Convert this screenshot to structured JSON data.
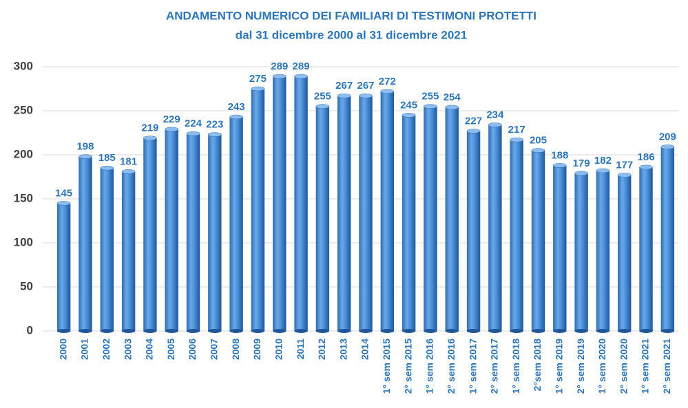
{
  "chart_data": {
    "type": "bar",
    "title": "ANDAMENTO NUMERICO DEI FAMILIARI DI TESTIMONI PROTETTI",
    "subtitle": "dal 31 dicembre 2000 al 31 dicembre 2021",
    "categories": [
      "2000",
      "2001",
      "2002",
      "2003",
      "2004",
      "2005",
      "2006",
      "2007",
      "2008",
      "2009",
      "2010",
      "2011",
      "2012",
      "2013",
      "2014",
      "1° sem 2015",
      "2° sem 2015",
      "1° sem 2016",
      "2° sem 2016",
      "1° sem 2017",
      "2° sem 2017",
      "1° sem 2018",
      "2°sem 2018",
      "1° sem 2019",
      "2° sem 2019",
      "1° sem 2020",
      "2° sem 2020",
      "1° sem 2021",
      "2° sem 2021"
    ],
    "values": [
      145,
      198,
      185,
      181,
      219,
      229,
      224,
      223,
      243,
      275,
      289,
      289,
      255,
      267,
      267,
      272,
      245,
      255,
      254,
      227,
      234,
      217,
      205,
      188,
      179,
      182,
      177,
      186,
      209
    ],
    "color": "#4a8fd8",
    "ylim": [
      0,
      300
    ],
    "yticks": [
      0,
      50,
      100,
      150,
      200,
      250,
      300
    ],
    "grid": true
  }
}
